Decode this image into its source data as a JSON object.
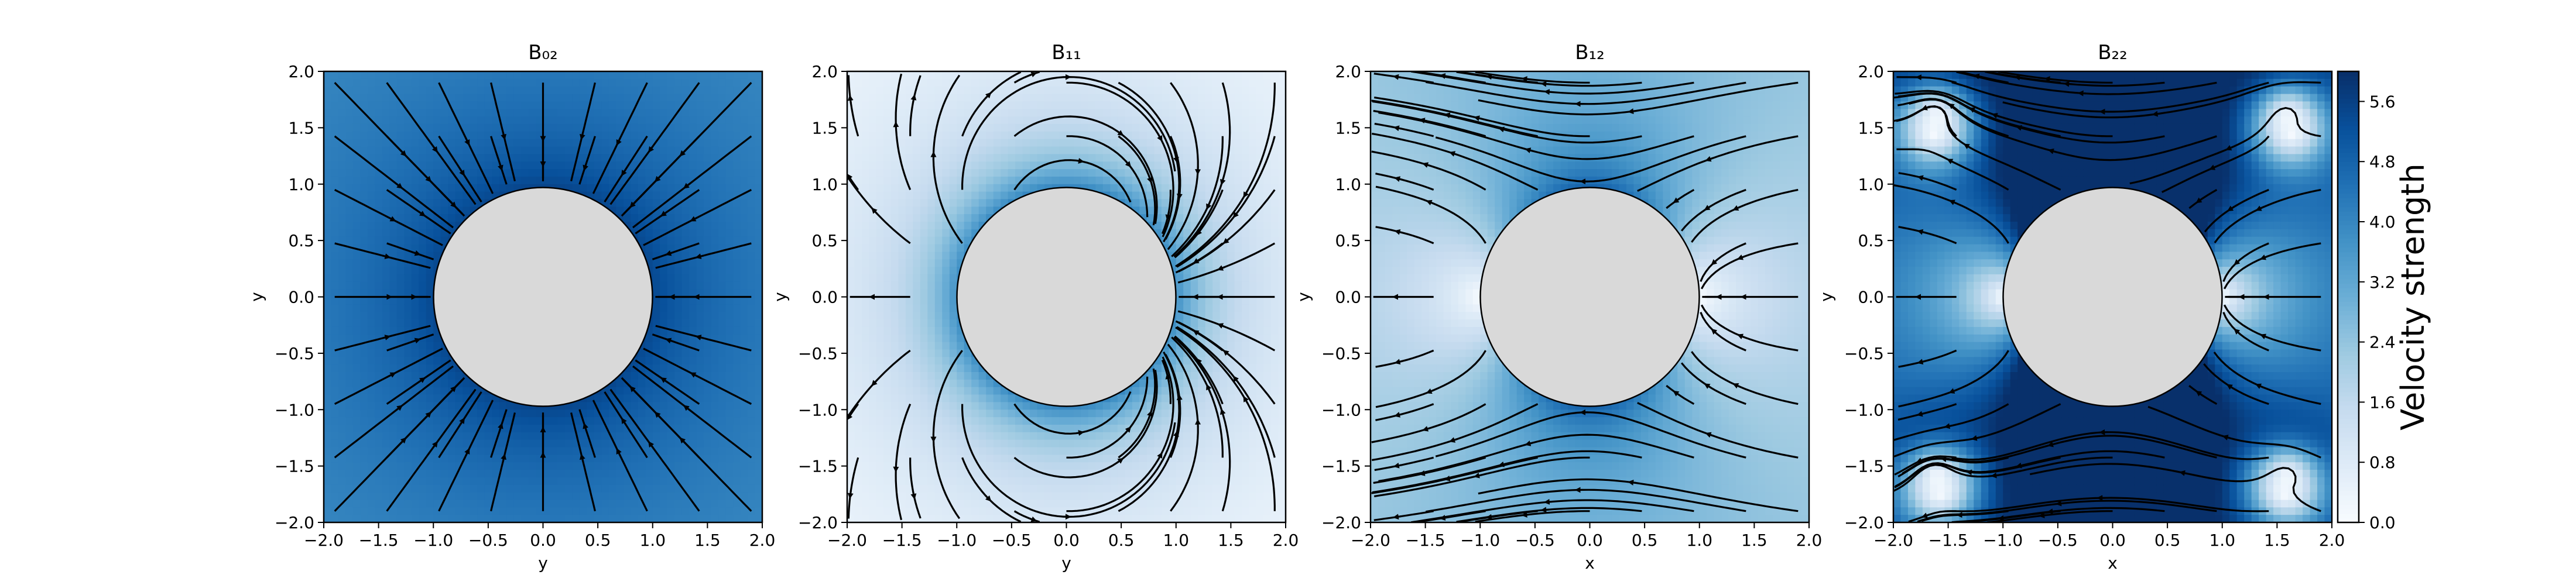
{
  "colors": {
    "cylinder_fill": "#d9d9d9",
    "streamline": "#000000",
    "colormap": [
      "#f7fbff",
      "#deebf7",
      "#c6dbef",
      "#9ecae1",
      "#6baed6",
      "#4292c6",
      "#2171b5",
      "#08519c",
      "#08306b"
    ]
  },
  "chart_data": [
    {
      "type": "heatmap",
      "title": "B₀₂",
      "xlabel": "y",
      "ylabel": "y",
      "xlim": [
        -2.0,
        2.0
      ],
      "ylim": [
        -2.0,
        2.0
      ],
      "xticks": [
        "−2.0",
        "−1.5",
        "−1.0",
        "−0.5",
        "0.0",
        "0.5",
        "1.0",
        "1.5",
        "2.0"
      ],
      "yticks": [
        "2.0",
        "1.5",
        "1.0",
        "0.5",
        "0.0",
        "−0.5",
        "−1.0",
        "−1.5",
        "−2.0"
      ],
      "cylinder_radius": 1.0,
      "field": "radial inflow toward the cylinder; speed strongest near the cylinder surface and in the outer corners"
    },
    {
      "type": "heatmap",
      "title": "B₁₁",
      "xlabel": "y",
      "ylabel": "y",
      "xlim": [
        -2.0,
        2.0
      ],
      "ylim": [
        -2.0,
        2.0
      ],
      "xticks": [
        "−2.0",
        "−1.5",
        "−1.0",
        "−0.5",
        "0.0",
        "0.5",
        "1.0",
        "1.5",
        "2.0"
      ],
      "yticks": [
        "2.0",
        "1.5",
        "1.0",
        "0.5",
        "0.0",
        "−0.5",
        "−1.0",
        "−1.5",
        "−2.0"
      ],
      "cylinder_radius": 1.0,
      "field": "inflow at left and right, loops above and below the cylinder; dark ring of high speed at the cylinder sides"
    },
    {
      "type": "heatmap",
      "title": "B₁₂",
      "xlabel": "x",
      "ylabel": "y",
      "xlim": [
        -2.0,
        2.0
      ],
      "ylim": [
        -2.0,
        2.0
      ],
      "xticks": [
        "−2.0",
        "−1.5",
        "−1.0",
        "−0.5",
        "0.0",
        "0.5",
        "1.0",
        "1.5",
        "2.0"
      ],
      "yticks": [
        "2.0",
        "1.5",
        "1.0",
        "0.5",
        "0.0",
        "−0.5",
        "−1.0",
        "−1.5",
        "−2.0"
      ],
      "cylinder_radius": 1.0,
      "field": "leftward flow wrapping around the cylinder, low speed everywhere"
    },
    {
      "type": "heatmap",
      "title": "B₂₂",
      "xlabel": "x",
      "ylabel": "y",
      "xlim": [
        -2.0,
        2.0
      ],
      "ylim": [
        -2.0,
        2.0
      ],
      "xticks": [
        "−2.0",
        "−1.5",
        "−1.0",
        "−0.5",
        "0.0",
        "0.5",
        "1.0",
        "1.5",
        "2.0"
      ],
      "yticks": [
        "2.0",
        "1.5",
        "1.0",
        "0.5",
        "0.0",
        "−0.5",
        "−1.0",
        "−1.5",
        "−2.0"
      ],
      "cylinder_radius": 1.0,
      "field": "strong leftward flow, small vortices in the four corners with low-speed cores"
    }
  ],
  "colorbar": {
    "label": "Velocity strength",
    "range": [
      0.0,
      6.0
    ],
    "ticks": [
      "0.0",
      "0.8",
      "1.6",
      "2.4",
      "3.2",
      "4.0",
      "4.8",
      "5.6"
    ],
    "tick_values": [
      0.0,
      0.8,
      1.6,
      2.4,
      3.2,
      4.0,
      4.8,
      5.6
    ]
  }
}
